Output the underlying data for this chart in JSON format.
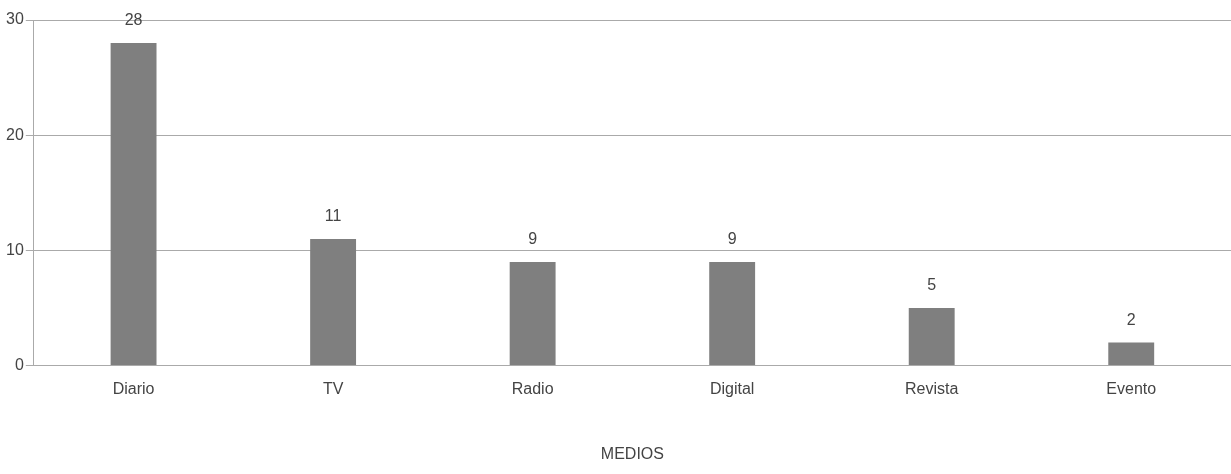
{
  "chart_data": {
    "type": "bar",
    "xlabel": "MEDIOS",
    "categories": [
      "Diario",
      "TV",
      "Radio",
      "Digital",
      "Revista",
      "Evento"
    ],
    "values": [
      28,
      11,
      9,
      9,
      5,
      2
    ],
    "color": "#7f7f7f",
    "ylim": [
      0,
      30
    ],
    "yticks": [
      0,
      10,
      20,
      30
    ],
    "grid": "y",
    "data_labels": true
  }
}
